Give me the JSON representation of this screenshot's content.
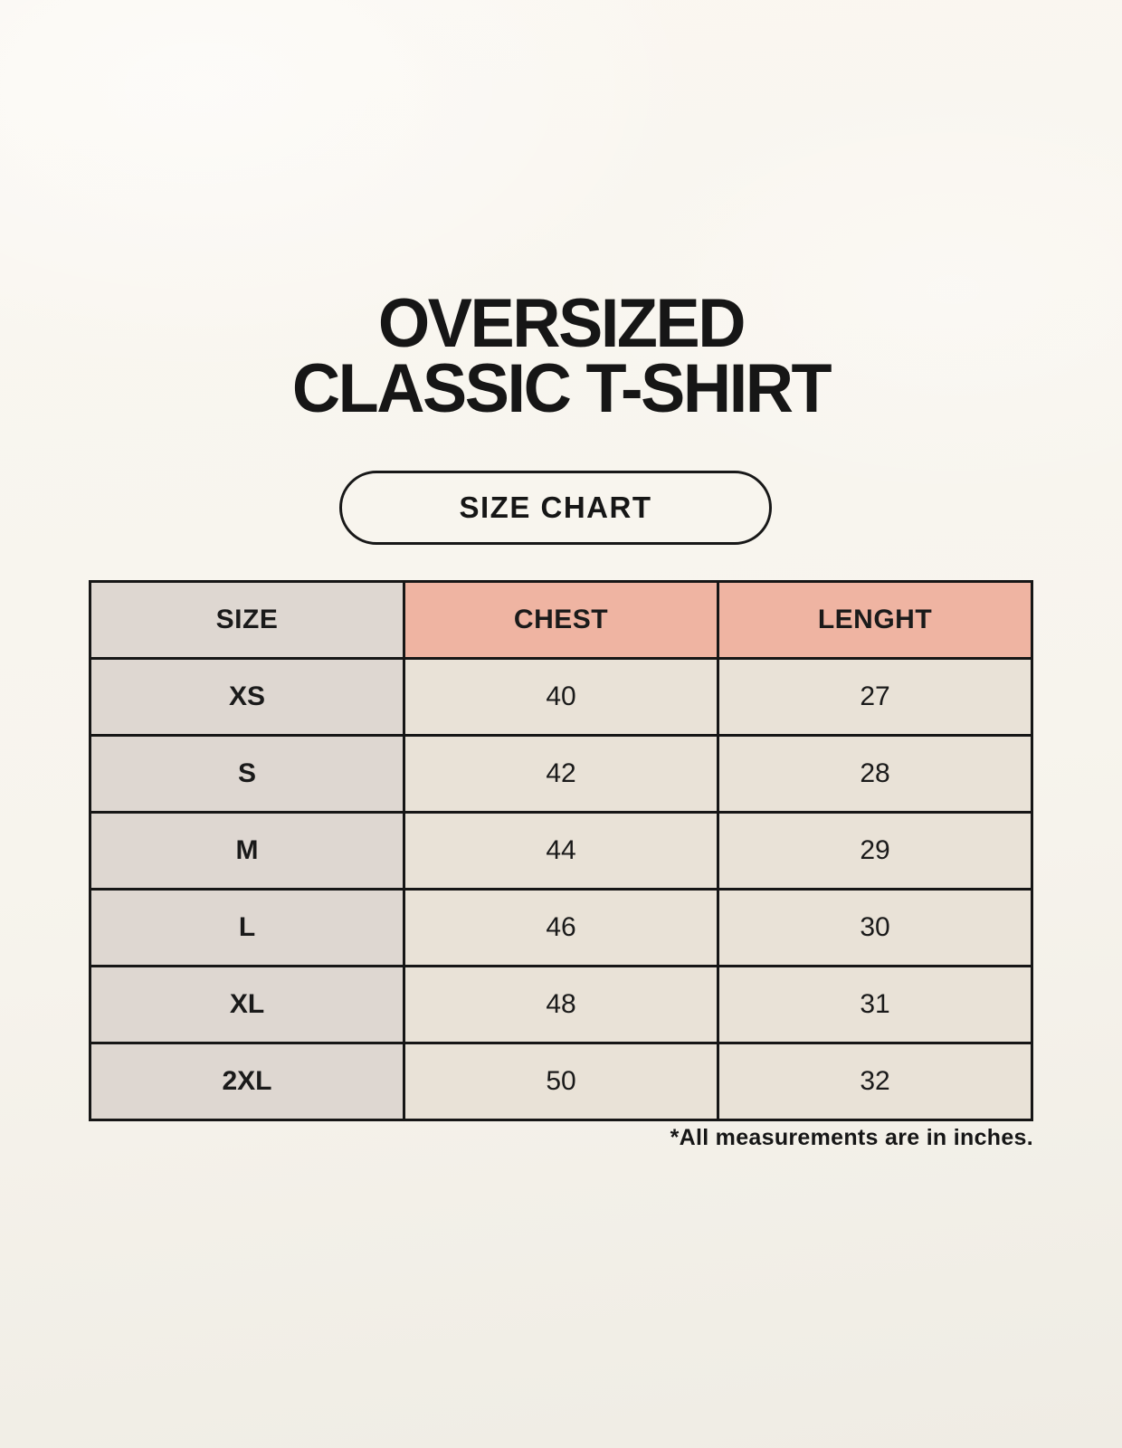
{
  "header": {
    "title_line1": "OVERSIZED",
    "title_line2": "CLASSIC T-SHIRT",
    "badge_label": "SIZE CHART"
  },
  "colors": {
    "background_top": "#faf7f1",
    "background_bottom": "#efece4",
    "header_accent": "#efb4a2",
    "size_column": "#ded7d1",
    "data_cell": "#e9e2d7",
    "border": "#161616",
    "text": "#1a1a1a"
  },
  "chart_data": {
    "type": "table",
    "title": "OVERSIZED CLASSIC T-SHIRT",
    "subtitle": "SIZE CHART",
    "columns": [
      "SIZE",
      "CHEST",
      "LENGHT"
    ],
    "rows": [
      [
        "XS",
        "40",
        "27"
      ],
      [
        "S",
        "42",
        "28"
      ],
      [
        "M",
        "44",
        "29"
      ],
      [
        "L",
        "46",
        "30"
      ],
      [
        "XL",
        "48",
        "31"
      ],
      [
        "2XL",
        "50",
        "32"
      ]
    ],
    "units": "inches",
    "footnote": "*All measurements are in inches."
  }
}
